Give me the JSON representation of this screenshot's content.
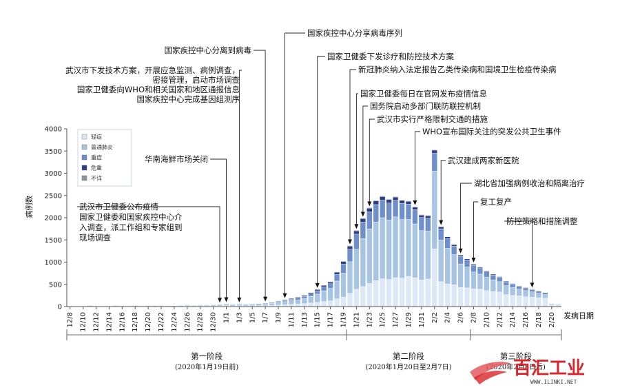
{
  "chart_data": {
    "type": "bar",
    "stacked": true,
    "ylabel": "病例数",
    "xlabel": "发病日期",
    "ylim": [
      0,
      4000
    ],
    "y_ticks": [
      0,
      500,
      1000,
      1500,
      2000,
      2500,
      3000,
      3500,
      4000
    ],
    "x_tick_labels": [
      "12/8",
      "12/10",
      "12/12",
      "12/14",
      "12/16",
      "12/18",
      "12/20",
      "12/22",
      "12/24",
      "12/26",
      "12/28",
      "12/30",
      "1/1",
      "1/3",
      "1/5",
      "1/7",
      "1/9",
      "1/11",
      "1/13",
      "1/15",
      "1/17",
      "1/19",
      "1/21",
      "1/23",
      "1/25",
      "1/27",
      "1/29",
      "1/31",
      "2/2",
      "2/4",
      "2/6",
      "2/8",
      "2/10",
      "2/12",
      "2/14",
      "2/16",
      "2/18",
      "2/20"
    ],
    "categories": [
      "12/8",
      "12/9",
      "12/10",
      "12/11",
      "12/12",
      "12/13",
      "12/14",
      "12/15",
      "12/16",
      "12/17",
      "12/18",
      "12/19",
      "12/20",
      "12/21",
      "12/22",
      "12/23",
      "12/24",
      "12/25",
      "12/26",
      "12/27",
      "12/28",
      "12/29",
      "12/30",
      "12/31",
      "1/1",
      "1/2",
      "1/3",
      "1/4",
      "1/5",
      "1/6",
      "1/7",
      "1/8",
      "1/9",
      "1/10",
      "1/11",
      "1/12",
      "1/13",
      "1/14",
      "1/15",
      "1/16",
      "1/17",
      "1/18",
      "1/19",
      "1/20",
      "1/21",
      "1/22",
      "1/23",
      "1/24",
      "1/25",
      "1/26",
      "1/27",
      "1/28",
      "1/29",
      "1/30",
      "1/31",
      "2/1",
      "2/2",
      "2/3",
      "2/4",
      "2/5",
      "2/6",
      "2/7",
      "2/8",
      "2/9",
      "2/10",
      "2/11",
      "2/12",
      "2/13",
      "2/14",
      "2/15",
      "2/16",
      "2/17",
      "2/18",
      "2/19",
      "2/20",
      "2/21"
    ],
    "series": [
      {
        "name": "轻症",
        "color": "#dde8f6",
        "values": [
          5,
          2,
          5,
          6,
          5,
          3,
          2,
          8,
          4,
          5,
          6,
          5,
          8,
          6,
          8,
          7,
          6,
          8,
          10,
          9,
          10,
          11,
          12,
          14,
          16,
          14,
          15,
          15,
          17,
          18,
          20,
          26,
          33,
          40,
          48,
          55,
          65,
          80,
          95,
          115,
          130,
          175,
          215,
          300,
          390,
          450,
          520,
          585,
          625,
          610,
          650,
          640,
          680,
          650,
          600,
          620,
          1300,
          560,
          510,
          490,
          430,
          420,
          400,
          390,
          360,
          340,
          330,
          270,
          250,
          240,
          220,
          210,
          200,
          190,
          45,
          35
        ]
      },
      {
        "name": "普通肺炎",
        "color": "#a7c4e3",
        "values": [
          10,
          3,
          10,
          12,
          9,
          6,
          4,
          14,
          8,
          10,
          12,
          10,
          14,
          12,
          14,
          13,
          12,
          15,
          18,
          16,
          18,
          20,
          22,
          25,
          30,
          25,
          28,
          27,
          30,
          32,
          38,
          45,
          60,
          70,
          82,
          95,
          115,
          150,
          185,
          240,
          280,
          400,
          540,
          710,
          900,
          1080,
          1230,
          1320,
          1375,
          1340,
          1370,
          1320,
          1280,
          1210,
          1110,
          1080,
          1750,
          940,
          800,
          680,
          530,
          470,
          380,
          340,
          300,
          260,
          230,
          200,
          180,
          150,
          140,
          120,
          100,
          80,
          20,
          18
        ]
      },
      {
        "name": "重症",
        "color": "#6e8fc9",
        "values": [
          4,
          1,
          4,
          5,
          4,
          2,
          1,
          6,
          3,
          4,
          5,
          4,
          6,
          5,
          6,
          5,
          5,
          6,
          8,
          7,
          8,
          9,
          10,
          12,
          14,
          12,
          13,
          12,
          14,
          15,
          16,
          20,
          25,
          30,
          36,
          42,
          50,
          60,
          75,
          90,
          105,
          150,
          200,
          280,
          340,
          370,
          380,
          390,
          395,
          380,
          370,
          360,
          345,
          320,
          295,
          290,
          400,
          250,
          220,
          190,
          170,
          160,
          150,
          140,
          120,
          110,
          100,
          85,
          75,
          65,
          60,
          55,
          50,
          45,
          10,
          8
        ]
      },
      {
        "name": "危重",
        "color": "#2d3e85",
        "values": [
          2,
          0,
          2,
          2,
          2,
          1,
          1,
          3,
          2,
          2,
          2,
          2,
          3,
          3,
          3,
          3,
          3,
          3,
          4,
          4,
          4,
          5,
          5,
          6,
          7,
          6,
          7,
          7,
          7,
          8,
          8,
          10,
          12,
          15,
          17,
          20,
          22,
          25,
          30,
          35,
          40,
          50,
          60,
          70,
          75,
          80,
          85,
          85,
          80,
          80,
          75,
          70,
          65,
          60,
          55,
          55,
          70,
          45,
          40,
          35,
          30,
          25,
          25,
          20,
          20,
          20,
          15,
          15,
          15,
          12,
          12,
          10,
          8,
          7,
          2,
          2
        ]
      },
      {
        "name": "不详",
        "color": "#8c939e",
        "values": [
          1,
          0,
          1,
          1,
          1,
          0,
          0,
          1,
          1,
          1,
          1,
          1,
          1,
          1,
          1,
          1,
          1,
          1,
          1,
          1,
          1,
          1,
          1,
          1,
          2,
          1,
          1,
          1,
          1,
          1,
          1,
          2,
          2,
          3,
          3,
          4,
          4,
          5,
          5,
          6,
          6,
          8,
          10,
          12,
          12,
          12,
          12,
          12,
          12,
          11,
          11,
          10,
          10,
          10,
          10,
          10,
          12,
          9,
          8,
          8,
          7,
          7,
          6,
          6,
          5,
          5,
          5,
          4,
          4,
          4,
          3,
          3,
          3,
          3,
          1,
          1
        ]
      }
    ],
    "legend_position": "top-left",
    "annotations": [
      {
        "lines": [
          "国家疾控中心分享病毒序列"
        ],
        "date": "1/10"
      },
      {
        "lines": [
          "国家疾控中心分离到病毒"
        ],
        "date": "1/7"
      },
      {
        "lines": [
          "武汉市下发技术方案，开展应急监测、病例调查，",
          "密接管理，启动市场调查",
          "国家卫健委向WHO和相关国家和地区通报信息",
          "国家疾控中心完成基因组测序"
        ],
        "date": "1/3"
      },
      {
        "lines": [
          "国家卫健委下发诊疗和防控技术方案"
        ],
        "date": "1/15"
      },
      {
        "lines": [
          "新冠肺炎纳入法定报告乙类传染病和国境卫生检疫传染病"
        ],
        "date": "1/20"
      },
      {
        "lines": [
          "国家卫健委每日在官网发布疫情信息"
        ],
        "date": "1/21"
      },
      {
        "lines": [
          "国务院启动多部门联防联控机制"
        ],
        "date": "1/22"
      },
      {
        "lines": [
          "武汉市实行严格限制交通的措施"
        ],
        "date": "1/23"
      },
      {
        "lines": [
          "WHO宣布国际关注的突发公共卫生事件"
        ],
        "date": "1/30"
      },
      {
        "lines": [
          "华南海鲜市场关闭"
        ],
        "date": "1/1"
      },
      {
        "lines": [
          "武汉建成两家新医院"
        ],
        "date": "2/3"
      },
      {
        "lines": [
          "湖北省加强病例收治和隔离治疗"
        ],
        "date": "2/6"
      },
      {
        "lines": [
          "复工复产"
        ],
        "date": "2/8"
      },
      {
        "lines": [
          "防控策略和措施调整"
        ],
        "date": "2/17"
      },
      {
        "lines": [
          "武汉市卫健委公布疫情",
          "国家卫健委和国家疾控中心介",
          "入调查，派工作组和专家组到",
          "现场调查"
        ],
        "date": "12/31"
      }
    ],
    "stages": [
      {
        "title": "第一阶段",
        "subtitle": "(2020年1月19日前)",
        "start": "12/8",
        "end": "1/19"
      },
      {
        "title": "第二阶段",
        "subtitle": "(2020年1月20日至2月7日)",
        "start": "1/19",
        "end": "2/7"
      },
      {
        "title": "第三阶段",
        "subtitle": "(2020年2月8日后)",
        "start": "2/7",
        "end": "2/21"
      }
    ]
  },
  "watermark": {
    "text": "百汇工业",
    "url": "WWW.ILINKI.NET"
  }
}
